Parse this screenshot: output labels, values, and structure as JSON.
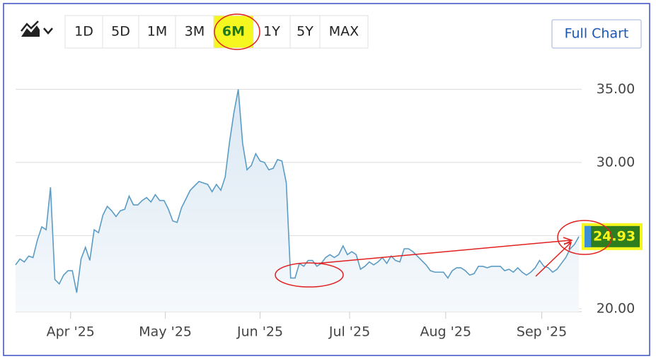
{
  "toolbar": {
    "ranges": [
      "1D",
      "5D",
      "1M",
      "3M",
      "6M",
      "1Y",
      "5Y",
      "MAX"
    ],
    "selected": "6M",
    "full_chart": "Full Chart"
  },
  "chart_data": {
    "type": "line",
    "color": "#5b9cc4",
    "values": [
      23.0,
      23.4,
      23.2,
      23.6,
      23.5,
      24.7,
      25.6,
      25.4,
      28.3,
      22.0,
      21.7,
      22.3,
      22.6,
      22.6,
      21.1,
      23.4,
      24.2,
      23.3,
      25.4,
      25.2,
      26.4,
      27.0,
      26.7,
      26.3,
      26.7,
      26.8,
      27.7,
      27.1,
      27.1,
      27.4,
      27.6,
      27.3,
      27.8,
      27.4,
      27.4,
      26.8,
      26.0,
      25.9,
      26.9,
      27.5,
      28.1,
      28.4,
      28.7,
      28.6,
      28.5,
      28.0,
      28.5,
      28.1,
      29.0,
      31.4,
      33.4,
      35.0,
      31.3,
      29.5,
      29.8,
      30.6,
      30.1,
      30.0,
      29.5,
      29.6,
      30.2,
      30.1,
      28.6,
      22.1,
      22.1,
      23.1,
      22.9,
      23.3,
      23.3,
      22.9,
      23.1,
      23.5,
      23.7,
      23.5,
      23.7,
      24.3,
      23.7,
      23.9,
      23.7,
      22.7,
      22.9,
      23.2,
      23.0,
      23.2,
      23.5,
      23.1,
      23.6,
      23.3,
      23.2,
      24.1,
      24.1,
      23.9,
      23.6,
      23.3,
      23.0,
      22.6,
      22.5,
      22.5,
      22.5,
      22.1,
      22.6,
      22.8,
      22.8,
      22.6,
      22.3,
      22.4,
      22.9,
      22.9,
      22.8,
      22.9,
      22.9,
      22.9,
      22.6,
      22.7,
      22.5,
      22.8,
      22.5,
      22.3,
      22.5,
      22.8,
      23.3,
      22.9,
      22.8,
      22.5,
      22.7,
      23.1,
      23.5,
      24.1,
      24.4,
      24.93
    ],
    "xlim": [
      0,
      129
    ],
    "xticks": [
      {
        "value": 12.6,
        "label": "Apr '25"
      },
      {
        "value": 34.3,
        "label": "May '25"
      },
      {
        "value": 56,
        "label": "Jun '25"
      },
      {
        "value": 76.5,
        "label": "Jul '25"
      },
      {
        "value": 98.5,
        "label": "Aug '25"
      },
      {
        "value": 120.5,
        "label": "Sep '25"
      }
    ],
    "ylim": [
      19.8,
      37
    ],
    "yticks": [
      {
        "value": 20,
        "label": "20.00"
      },
      {
        "value": 25,
        "label": null
      },
      {
        "value": 30,
        "label": "30.00"
      },
      {
        "value": 35,
        "label": "35.00"
      }
    ],
    "grid": true
  }
}
